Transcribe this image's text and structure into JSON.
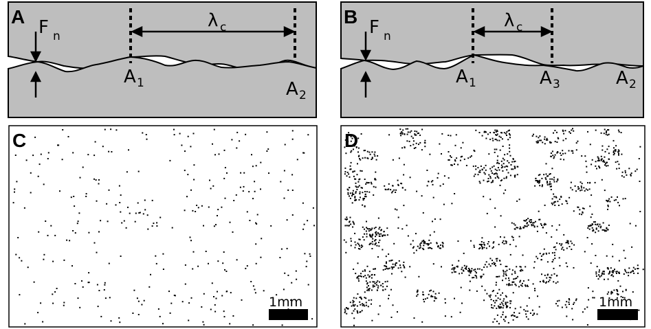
{
  "panels": {
    "a": {
      "label": "A"
    },
    "b": {
      "label": "B"
    },
    "c": {
      "label": "C"
    },
    "d": {
      "label": "D"
    }
  },
  "symbols": {
    "force": "F",
    "force_sub": "n",
    "wavelength": "λ",
    "wavelength_sub": "c",
    "asperity": "A"
  },
  "panel_a": {
    "points": [
      {
        "name": "A",
        "sub": "1"
      },
      {
        "name": "A",
        "sub": "2"
      }
    ]
  },
  "panel_b": {
    "points": [
      {
        "name": "A",
        "sub": "1"
      },
      {
        "name": "A",
        "sub": "3"
      },
      {
        "name": "A",
        "sub": "2"
      }
    ]
  },
  "scale_bar": {
    "label": "1mm"
  },
  "colors": {
    "solid": "#bebebe",
    "outline": "#000000",
    "background": "#ffffff"
  }
}
